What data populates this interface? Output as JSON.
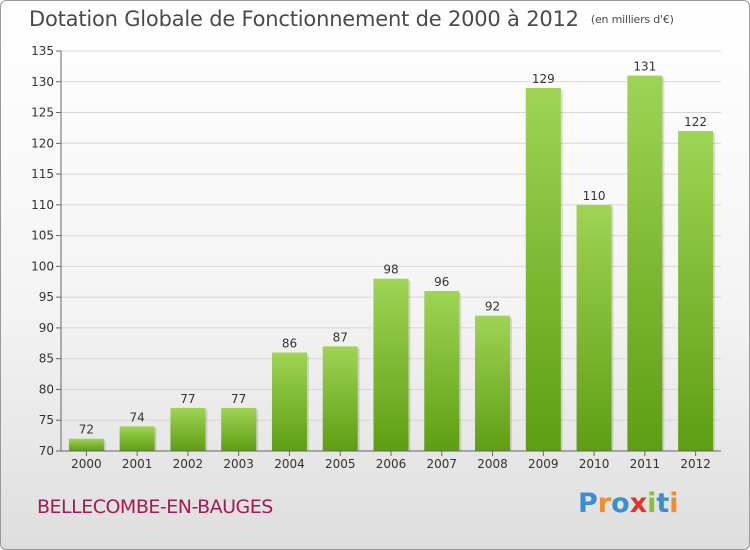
{
  "title": "Dotation Globale de Fonctionnement de 2000 à 2012",
  "subtitle": "(en milliers d'€)",
  "commune": "BELLECOMBE-EN-BAUGES",
  "logo": {
    "letters": [
      "P",
      "r",
      "o",
      "x",
      "i",
      "t",
      "i"
    ],
    "colors": [
      "#3b8fd0",
      "#f28c28",
      "#3b8fd0",
      "#e5332a",
      "#8bbf2b",
      "#3b8fd0",
      "#f28c28"
    ]
  },
  "colors": {
    "bar_top": "#9fd454",
    "bar_bottom": "#5e9e12",
    "grid": "#d8d8d8",
    "axis": "#666666"
  },
  "chart_data": {
    "type": "bar",
    "categories": [
      "2000",
      "2001",
      "2002",
      "2003",
      "2004",
      "2005",
      "2006",
      "2007",
      "2008",
      "2009",
      "2010",
      "2011",
      "2012"
    ],
    "values": [
      72,
      74,
      77,
      77,
      86,
      87,
      98,
      96,
      92,
      129,
      110,
      131,
      122
    ],
    "ylim": [
      70,
      135
    ],
    "yticks": [
      70,
      75,
      80,
      85,
      90,
      95,
      100,
      105,
      110,
      115,
      120,
      125,
      130,
      135
    ],
    "grid": true
  }
}
